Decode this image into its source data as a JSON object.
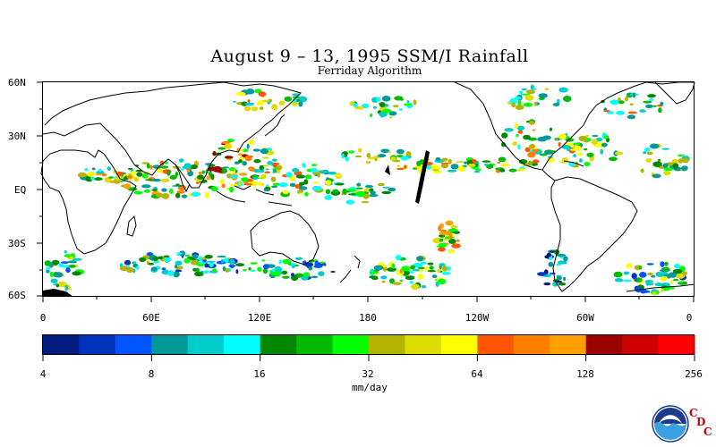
{
  "title": "August 9 – 13, 1995 SSM/I Rainfall",
  "subtitle": "Ferriday Algorithm",
  "lat_labels": [
    "60N",
    "30N",
    "EQ",
    "30S",
    "60S"
  ],
  "lon_labels": [
    "0",
    "60E",
    "120E",
    "180",
    "120W",
    "60W",
    "0"
  ],
  "colorbar": {
    "unit": "mm/day",
    "tick_labels": [
      "4",
      "8",
      "16",
      "32",
      "64",
      "128",
      "256"
    ],
    "colors": [
      "#001a80",
      "#0033bb",
      "#0055ff",
      "#009999",
      "#00cccc",
      "#00ffff",
      "#008800",
      "#00bb00",
      "#00ff00",
      "#b3b300",
      "#dddd00",
      "#ffff00",
      "#ff5500",
      "#ff7f00",
      "#ffa000",
      "#990000",
      "#cc0000",
      "#ff0000"
    ]
  },
  "logo": {
    "name": "noaa-logo",
    "text": "NOAA",
    "org_letters": [
      "C",
      "D",
      "C"
    ]
  },
  "map_info": {
    "projection": "equirectangular",
    "lon_range": [
      0,
      360
    ],
    "lat_range": [
      -60,
      60
    ],
    "grid": false,
    "color_scale": "log2 rainfall mm/day"
  }
}
